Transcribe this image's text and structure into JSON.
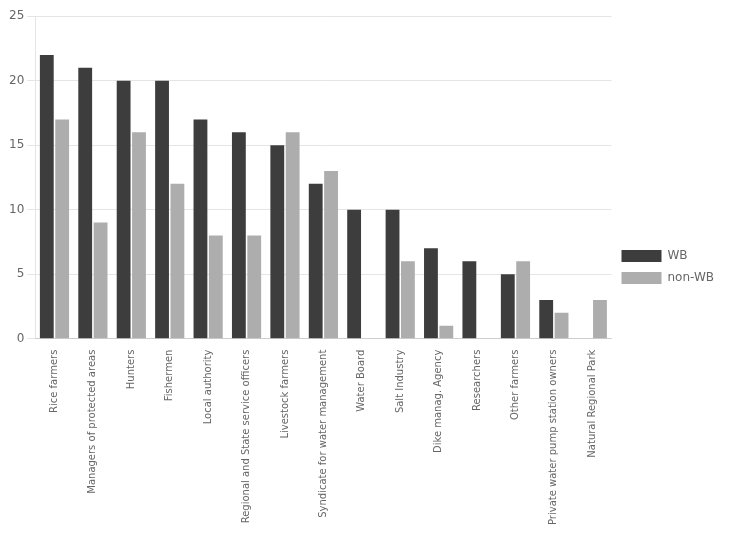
{
  "chart_data": {
    "type": "bar",
    "categories": [
      "Rice farmers",
      "Managers of protected areas",
      "Hunters",
      "Fishermen",
      "Local authority",
      "Regional and State service officers",
      "Livestock farmers",
      "Syndicate for water management",
      "Water Board",
      "Salt Industry",
      "Dike manag. Agency",
      "Researchers",
      "Other farmers",
      "Private water pump station owners",
      "Natural Regional Park"
    ],
    "series": [
      {
        "name": "WB",
        "color": "#3d3d3d",
        "values": [
          22,
          21,
          20,
          20,
          17,
          16,
          15,
          12,
          10,
          10,
          7,
          6,
          5,
          3,
          0
        ]
      },
      {
        "name": "non-WB",
        "color": "#adadad",
        "values": [
          17,
          9,
          16,
          12,
          8,
          8,
          16,
          13,
          0,
          6,
          1,
          0,
          6,
          2,
          3
        ]
      }
    ],
    "ylim": [
      0,
      25
    ],
    "yticks": [
      0,
      5,
      10,
      15,
      20,
      25
    ],
    "grid": true,
    "legend": "right"
  }
}
